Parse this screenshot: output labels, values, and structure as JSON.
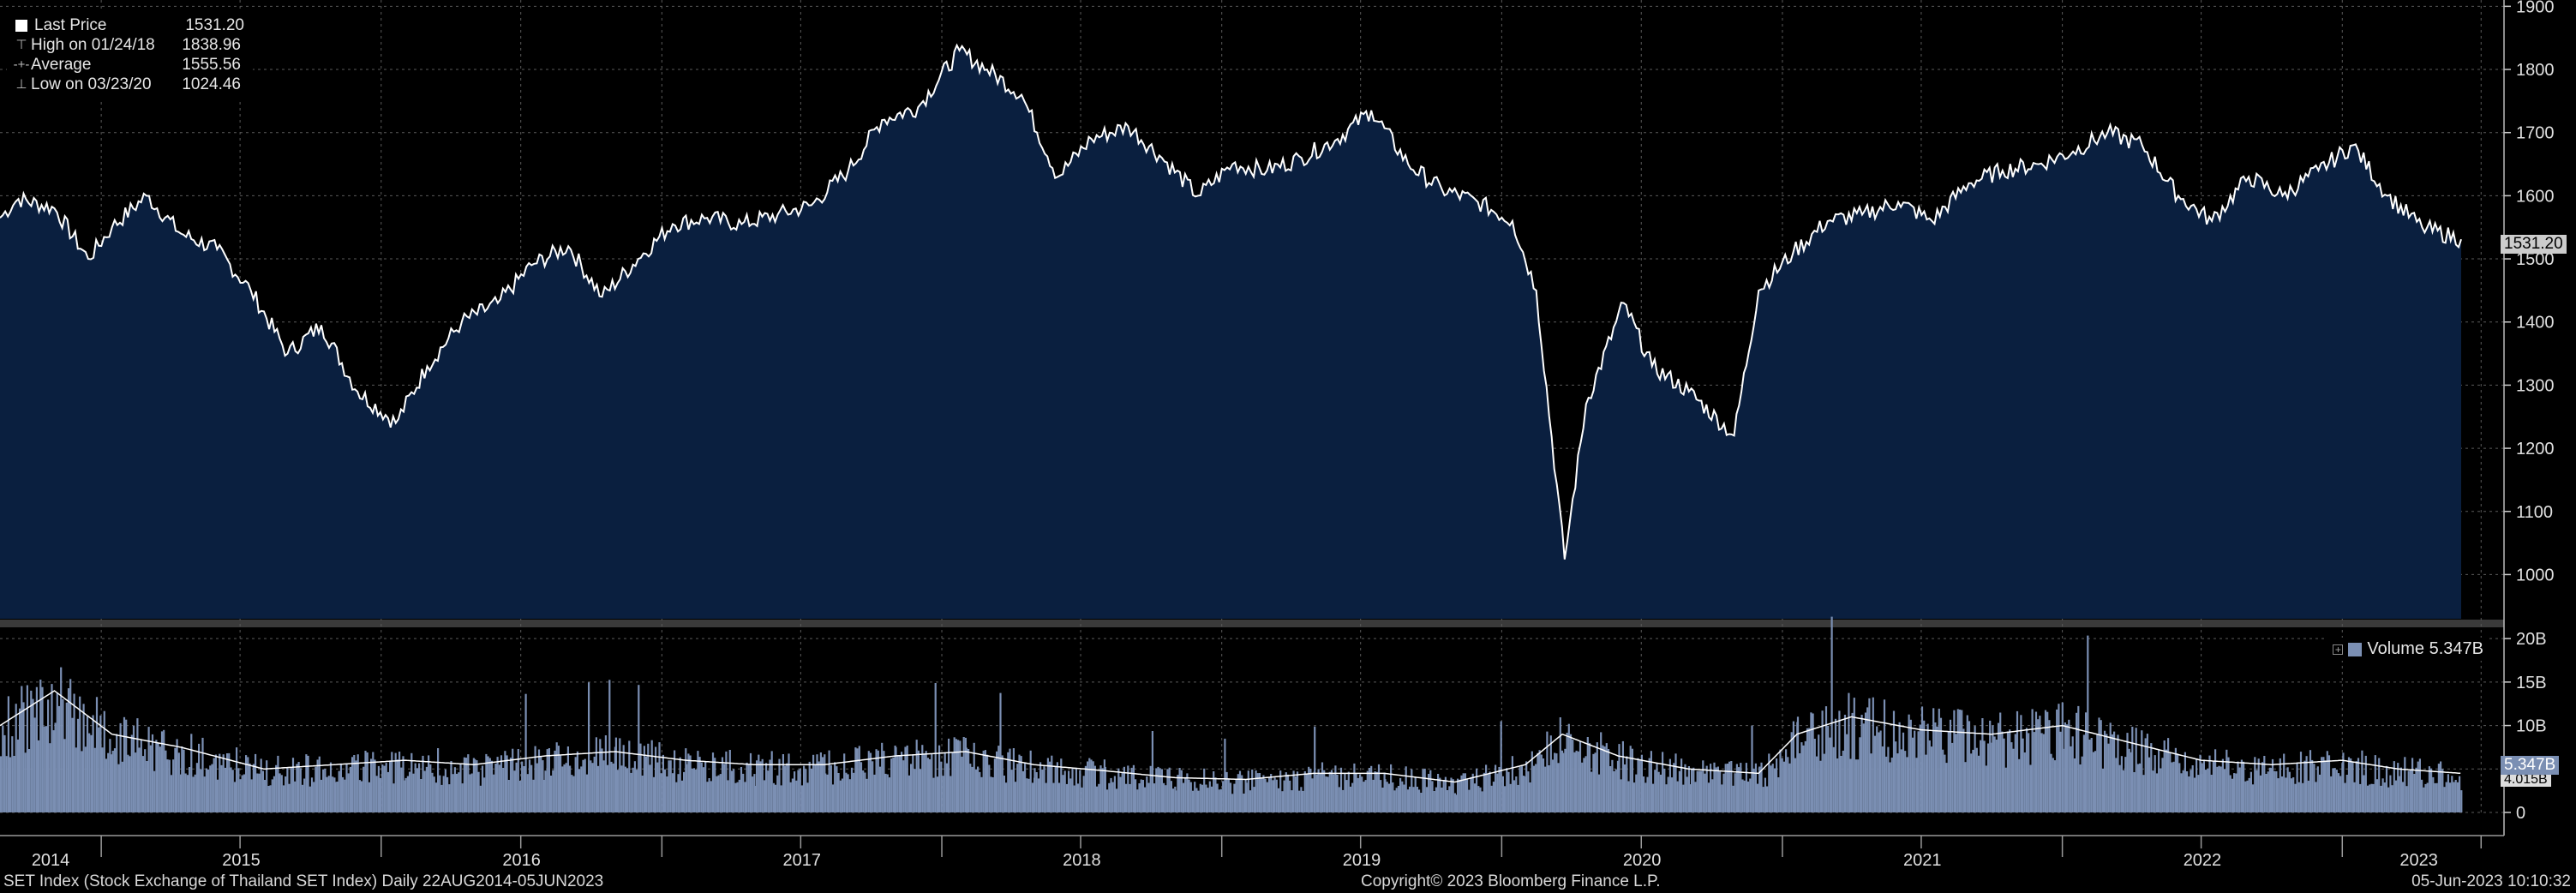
{
  "chart_data": [
    {
      "type": "area",
      "title": "",
      "series_name": "Last Price",
      "ylim": [
        930,
        1910
      ],
      "y_ticks": [
        "1000",
        "1100",
        "1200",
        "1300",
        "1400",
        "1500",
        "1600",
        "1700",
        "1800",
        "1900"
      ],
      "x_tick_labels": [
        "2014",
        "2015",
        "2016",
        "2017",
        "2018",
        "2019",
        "2020",
        "2021",
        "2022",
        "2023"
      ],
      "grid": true,
      "x": [
        "2014-08-22",
        "2014-09-15",
        "2014-11-01",
        "2014-12-15",
        "2015-01-15",
        "2015-03-01",
        "2015-04-15",
        "2015-06-01",
        "2015-07-15",
        "2015-09-01",
        "2015-10-15",
        "2015-12-01",
        "2016-01-20",
        "2016-03-01",
        "2016-04-15",
        "2016-06-01",
        "2016-07-15",
        "2016-09-01",
        "2016-10-15",
        "2016-12-01",
        "2017-01-15",
        "2017-03-01",
        "2017-04-15",
        "2017-06-01",
        "2017-07-15",
        "2017-09-01",
        "2017-10-15",
        "2017-12-01",
        "2018-01-24",
        "2018-03-01",
        "2018-04-15",
        "2018-06-01",
        "2018-07-15",
        "2018-09-01",
        "2018-10-15",
        "2018-12-01",
        "2019-01-15",
        "2019-03-01",
        "2019-04-15",
        "2019-06-01",
        "2019-07-15",
        "2019-09-01",
        "2019-10-15",
        "2019-12-01",
        "2020-01-15",
        "2020-02-15",
        "2020-03-23",
        "2020-04-20",
        "2020-06-08",
        "2020-07-15",
        "2020-09-01",
        "2020-10-30",
        "2020-12-01",
        "2021-01-15",
        "2021-03-01",
        "2021-04-15",
        "2021-06-01",
        "2021-07-15",
        "2021-09-01",
        "2021-10-15",
        "2021-12-01",
        "2022-01-15",
        "2022-03-01",
        "2022-04-15",
        "2022-06-01",
        "2022-07-15",
        "2022-09-01",
        "2022-10-15",
        "2022-12-01",
        "2023-01-15",
        "2023-03-01",
        "2023-04-15",
        "2023-06-05"
      ],
      "y": [
        1565,
        1595,
        1580,
        1500,
        1550,
        1600,
        1540,
        1515,
        1450,
        1350,
        1395,
        1290,
        1240,
        1330,
        1400,
        1430,
        1490,
        1520,
        1440,
        1500,
        1555,
        1565,
        1555,
        1570,
        1585,
        1640,
        1720,
        1740,
        1830,
        1800,
        1760,
        1630,
        1690,
        1710,
        1660,
        1600,
        1650,
        1640,
        1660,
        1690,
        1735,
        1650,
        1610,
        1590,
        1560,
        1450,
        1024,
        1270,
        1430,
        1330,
        1290,
        1220,
        1450,
        1510,
        1560,
        1570,
        1590,
        1560,
        1620,
        1640,
        1650,
        1670,
        1700,
        1680,
        1600,
        1560,
        1630,
        1600,
        1640,
        1680,
        1600,
        1550,
        1531
      ]
    },
    {
      "type": "bar",
      "series_name": "Volume",
      "ylim": [
        0,
        21
      ],
      "y_ticks": [
        "0",
        "5B",
        "10B",
        "15B",
        "20B"
      ],
      "x": [
        "2014-08-22",
        "2014-11-01",
        "2015-01-15",
        "2015-04-15",
        "2015-08-01",
        "2015-11-01",
        "2016-02-01",
        "2016-05-01",
        "2016-08-01",
        "2016-11-01",
        "2017-02-01",
        "2017-05-01",
        "2017-08-01",
        "2017-11-01",
        "2018-02-01",
        "2018-05-01",
        "2018-08-01",
        "2018-11-01",
        "2019-02-01",
        "2019-05-01",
        "2019-08-01",
        "2019-11-01",
        "2020-02-01",
        "2020-03-20",
        "2020-06-01",
        "2020-09-01",
        "2020-12-01",
        "2021-01-20",
        "2021-04-01",
        "2021-07-01",
        "2021-10-01",
        "2022-01-01",
        "2022-04-01",
        "2022-07-01",
        "2022-10-01",
        "2023-01-01",
        "2023-03-15",
        "2023-06-05"
      ],
      "values": [
        10,
        14,
        9,
        7.5,
        5,
        5.5,
        6,
        5.5,
        6.5,
        7,
        6,
        5.5,
        5.5,
        6.5,
        7,
        5.5,
        4.8,
        4,
        3.8,
        4.5,
        4.5,
        3.5,
        5.5,
        9,
        6.5,
        5,
        4.5,
        9,
        11,
        9.5,
        9,
        10,
        8,
        6,
        5.5,
        6,
        5,
        4.5
      ]
    }
  ],
  "legend": {
    "last_price_label": "Last Price",
    "last_price_value": "1531.20",
    "high_label": "High on 01/24/18",
    "high_value": "1838.96",
    "average_label": "Average",
    "average_value": "1555.56",
    "low_label": "Low on 03/23/20",
    "low_value": "1024.46"
  },
  "price_tag": "1531.20",
  "volume_legend": {
    "label": "Volume",
    "value": "5.347B"
  },
  "volume_tag": "5.347B",
  "volume_tag_partial": "4.015B",
  "footer": {
    "left": "SET Index (Stock Exchange of Thailand SET Index)  Daily 22AUG2014-05JUN2023",
    "center": "Copyright© 2023 Bloomberg Finance L.P.",
    "right": "05-Jun-2023 10:10:32"
  },
  "colors": {
    "price_fill": "#0a1f3f",
    "price_line": "#ffffff",
    "volume_fill": "#7b8fb3",
    "background": "#000000",
    "grid": "#5a5a5a"
  }
}
